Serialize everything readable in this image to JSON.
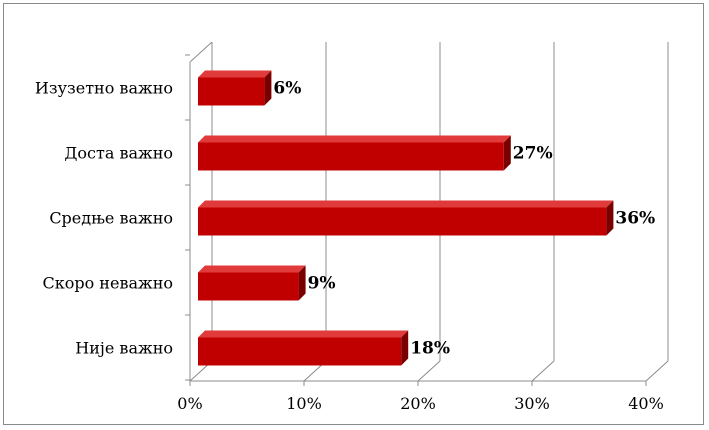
{
  "chart_data": {
    "type": "bar",
    "orientation": "horizontal",
    "style": "3d",
    "categories": [
      "Изузетно важно",
      "Доста важно",
      "Средње важно",
      "Скоро неважно",
      "Није важно"
    ],
    "values": [
      6,
      27,
      36,
      9,
      18
    ],
    "data_labels": [
      "6%",
      "27%",
      "36%",
      "9%",
      "18%"
    ],
    "x_ticks": [
      "0%",
      "10%",
      "20%",
      "30%",
      "40%"
    ],
    "xlim": [
      0,
      40
    ],
    "grid": true,
    "legend": "none",
    "title": "",
    "xlabel": "",
    "ylabel": "",
    "colors": {
      "bar_front": "#c00000",
      "bar_top": "#e03a3a",
      "bar_side": "#7a0000",
      "grid": "#8c8c8c",
      "axis": "#8c8c8c"
    }
  }
}
